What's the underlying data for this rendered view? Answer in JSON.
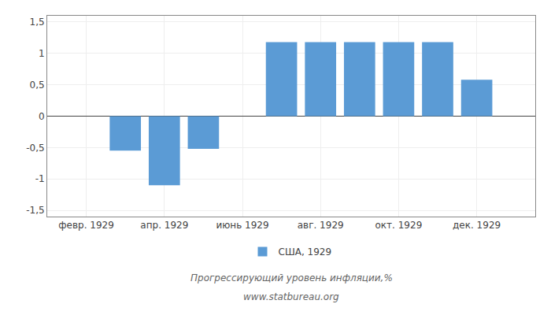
{
  "chart_data": {
    "type": "bar",
    "title": "Прогрессирующий уровень инфляции,%",
    "subtitle": "www.statbureau.org",
    "x": [
      3,
      4,
      5,
      7,
      8,
      9,
      10,
      11,
      12
    ],
    "series": [
      {
        "name": "США, 1929",
        "color": "#5b9bd5",
        "values": [
          -0.55,
          -1.1,
          -0.52,
          1.18,
          1.18,
          1.18,
          1.18,
          1.18,
          0.58
        ]
      }
    ],
    "xlim": [
      1.0,
      13.5
    ],
    "xticks": [
      {
        "value": 2,
        "label": "февр. 1929"
      },
      {
        "value": 4,
        "label": "апр. 1929"
      },
      {
        "value": 6,
        "label": "июнь 1929"
      },
      {
        "value": 8,
        "label": "авг. 1929"
      },
      {
        "value": 10,
        "label": "окт. 1929"
      },
      {
        "value": 12,
        "label": "дек. 1929"
      }
    ],
    "ylim": [
      -1.6,
      1.6
    ],
    "yticks": [
      {
        "value": -1.5,
        "label": "-1,5"
      },
      -1,
      {
        "value": -0.5,
        "label": "-0,5"
      },
      0,
      {
        "value": 0.5,
        "label": "0,5"
      },
      1,
      {
        "value": 1.5,
        "label": "1,5"
      }
    ],
    "grid": true,
    "legend": "bottom"
  }
}
